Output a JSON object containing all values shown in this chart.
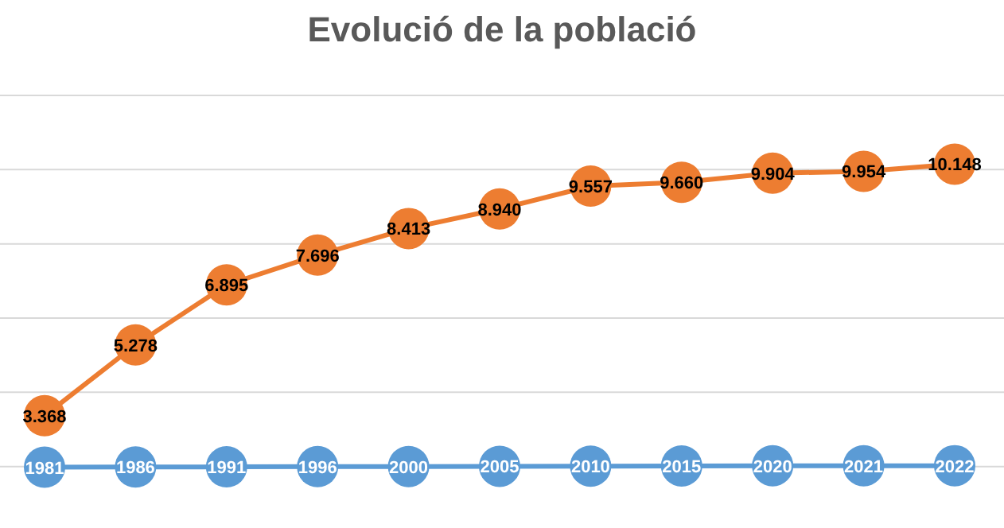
{
  "chart_data": {
    "type": "line",
    "title": "Evolució de la població",
    "categories": [
      null,
      null,
      null,
      null,
      null,
      null,
      null,
      null,
      null,
      null,
      null
    ],
    "series": [
      {
        "color": "#5b9bd5",
        "values": [
          1981,
          1986,
          1991,
          1996,
          2000,
          2005,
          2010,
          2015,
          2020,
          2021,
          2022
        ],
        "value_labels": [
          "1981",
          "1986",
          "1991",
          "1996",
          "2000",
          "2005",
          "2010",
          "2015",
          "2020",
          "2021",
          "2022"
        ]
      },
      {
        "color": "#ed7d31",
        "values": [
          3368,
          5278,
          6895,
          7696,
          8413,
          8940,
          9557,
          9660,
          9904,
          9954,
          10148
        ],
        "value_labels": [
          "3.368",
          "5.278",
          "6.895",
          "7.696",
          "8.413",
          "8.940",
          "9.557",
          "9.660",
          "9.904",
          "9.954",
          "10.148"
        ]
      }
    ],
    "tick_labels": false,
    "grid": "y",
    "marker": "circle",
    "line_style": "solid"
  }
}
